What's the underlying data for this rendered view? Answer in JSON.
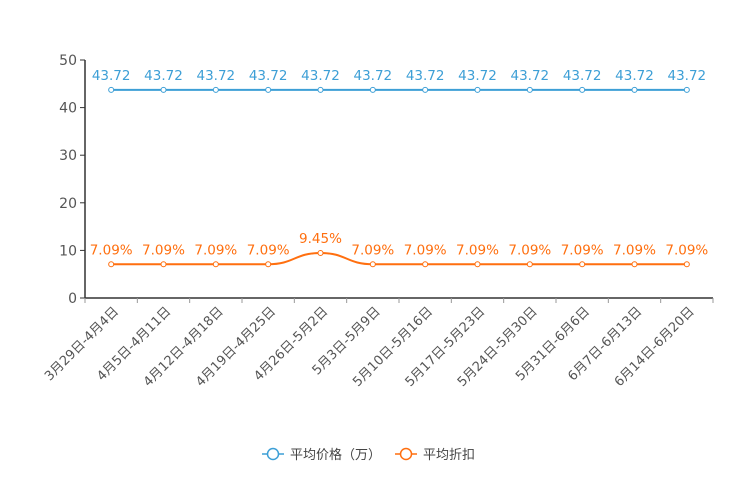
{
  "chart_data": {
    "type": "line",
    "title": "",
    "xlabel": "",
    "ylabel": "",
    "ylim": [
      0,
      50
    ],
    "yticks": [
      0,
      10,
      20,
      30,
      40,
      50
    ],
    "grid": false,
    "legend_position": "bottom-center",
    "categories": [
      "3月29日-4月4日",
      "4月5日-4月11日",
      "4月12日-4月18日",
      "4月19日-4月25日",
      "4月26日-5月2日",
      "5月3日-5月9日",
      "5月10日-5月16日",
      "5月17日-5月23日",
      "5月24日-5月30日",
      "5月31日-6月6日",
      "6月7日-6月13日",
      "6月14日-6月20日"
    ],
    "series": [
      {
        "name": "平均价格（万）",
        "color": "#3d9fd6",
        "values": [
          43.72,
          43.72,
          43.72,
          43.72,
          43.72,
          43.72,
          43.72,
          43.72,
          43.72,
          43.72,
          43.72,
          43.72
        ],
        "labels": [
          "43.72",
          "43.72",
          "43.72",
          "43.72",
          "43.72",
          "43.72",
          "43.72",
          "43.72",
          "43.72",
          "43.72",
          "43.72",
          "43.72"
        ]
      },
      {
        "name": "平均折扣",
        "color": "#ff6f0f",
        "values": [
          7.09,
          7.09,
          7.09,
          7.09,
          9.45,
          7.09,
          7.09,
          7.09,
          7.09,
          7.09,
          7.09,
          7.09
        ],
        "labels": [
          "7.09%",
          "7.09%",
          "7.09%",
          "7.09%",
          "9.45%",
          "7.09%",
          "7.09%",
          "7.09%",
          "7.09%",
          "7.09%",
          "7.09%",
          "7.09%"
        ]
      }
    ]
  }
}
